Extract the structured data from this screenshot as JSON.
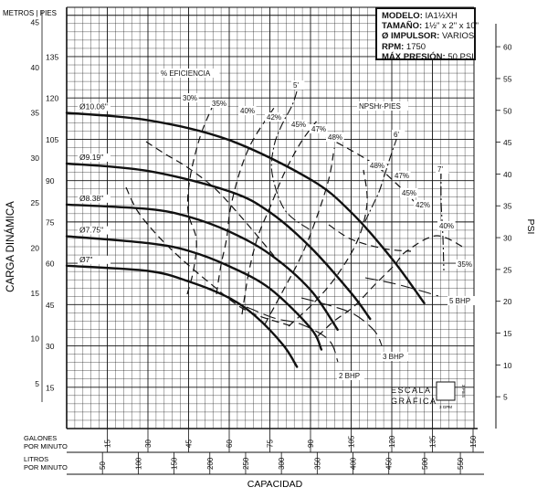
{
  "info": {
    "modelo_label": "MODELO:",
    "modelo": "IA1½XH",
    "tamano_label": "TAMAÑO:",
    "tamano": "1½\" x 2\" x 10\"",
    "impulsor_label": "Ø IMPULSOR:",
    "impulsor": "VARIOS",
    "rpm_label": "RPM:",
    "rpm": "1750",
    "presion_label": "MÁX PRESIÓN:",
    "presion": "50 PSI"
  },
  "scale": {
    "line1": "ESCALA",
    "line2": "GRÁFICA",
    "side": "3 PIES",
    "bottom": "3 GPM"
  },
  "colors": {
    "ink": "#111111",
    "grid": "#222222"
  },
  "chart_data": {
    "type": "line",
    "ylabel": "CARGA DINÁMICA",
    "ylabel_right": "PSI",
    "xlabel": "CAPACIDAD",
    "y_left_unit_top": "METROS | PIES",
    "x_row1_label": [
      "GALONES",
      "POR MINUTO"
    ],
    "x_row2_label": [
      "LITROS",
      "POR MINUTO"
    ],
    "xlim_gpm": [
      0,
      150
    ],
    "ylim_ft": [
      0,
      150
    ],
    "feet_ticks": [
      15,
      30,
      45,
      60,
      75,
      90,
      105,
      120,
      135
    ],
    "meter_ticks": [
      5,
      10,
      15,
      20,
      25,
      30,
      35,
      40,
      45
    ],
    "psi_ticks": [
      5,
      10,
      15,
      20,
      25,
      30,
      35,
      40,
      45,
      50,
      55,
      60
    ],
    "gpm_ticks": [
      15,
      30,
      45,
      60,
      75,
      90,
      105,
      120,
      135,
      150
    ],
    "lpm_ticks": [
      50,
      100,
      150,
      200,
      250,
      300,
      350,
      400,
      450,
      500,
      550
    ],
    "impeller_curves": [
      {
        "name": "Ø10.06\"",
        "points": [
          [
            0,
            114.6
          ],
          [
            30,
            111.9
          ],
          [
            60,
            104.7
          ],
          [
            90,
            90.4
          ],
          [
            105,
            78.5
          ],
          [
            120,
            61.7
          ],
          [
            132,
            45.5
          ]
        ]
      },
      {
        "name": "Ø9.19\"",
        "points": [
          [
            0,
            96.2
          ],
          [
            30,
            93.5
          ],
          [
            60,
            86.1
          ],
          [
            75,
            78.5
          ],
          [
            90,
            65.8
          ],
          [
            105,
            49.2
          ],
          [
            112,
            39.8
          ]
        ]
      },
      {
        "name": "Ø8.38\"",
        "points": [
          [
            0,
            81.3
          ],
          [
            30,
            79.7
          ],
          [
            45,
            76.9
          ],
          [
            60,
            71.5
          ],
          [
            75,
            63.3
          ],
          [
            90,
            50.3
          ],
          [
            100,
            35.9
          ]
        ]
      },
      {
        "name": "Ø7.75\"",
        "points": [
          [
            0,
            69.8
          ],
          [
            30,
            67.3
          ],
          [
            45,
            64.5
          ],
          [
            60,
            58.9
          ],
          [
            75,
            50.8
          ],
          [
            90,
            36.5
          ],
          [
            94,
            28.7
          ]
        ]
      },
      {
        "name": "Ø7\"",
        "points": [
          [
            0,
            59.1
          ],
          [
            30,
            57.2
          ],
          [
            45,
            53.4
          ],
          [
            60,
            47.4
          ],
          [
            70,
            40.5
          ],
          [
            80,
            30.2
          ],
          [
            85,
            22.4
          ]
        ]
      }
    ],
    "efficiency_labels": [
      "% EFICIENCIA",
      "30%",
      "35%",
      "40%",
      "42%",
      "45%",
      "47%",
      "48%",
      "48%",
      "47%",
      "45%",
      "42%",
      "40%",
      "35%"
    ],
    "npshr_labels": [
      "NPSHr-PIES",
      "5'",
      "6'",
      "7'"
    ],
    "bhp_labels": [
      "2 BHP",
      "3 BHP",
      "5 BHP"
    ]
  }
}
